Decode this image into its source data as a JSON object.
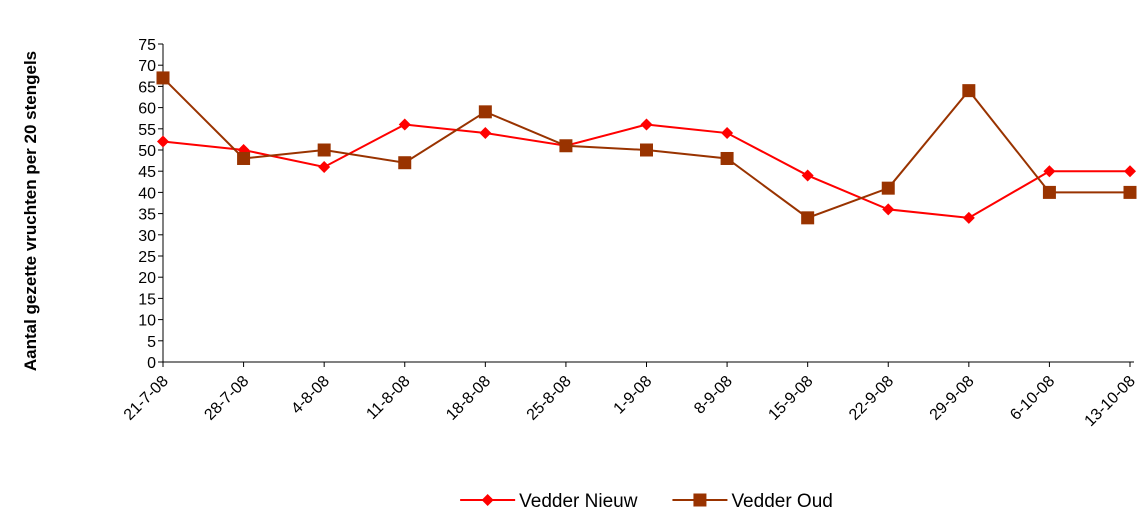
{
  "chart_data": {
    "type": "line",
    "y_label": "Aantal gezette vruchten per 20 stengels",
    "categories": [
      "21-7-08",
      "28-7-08",
      "4-8-08",
      "11-8-08",
      "18-8-08",
      "25-8-08",
      "1-9-08",
      "8-9-08",
      "15-9-08",
      "22-9-08",
      "29-9-08",
      "6-10-08",
      "13-10-08"
    ],
    "series": [
      {
        "name": "Vedder Nieuw",
        "color": "#ff0000",
        "marker": "diamond",
        "values": [
          52,
          50,
          46,
          56,
          54,
          51,
          56,
          54,
          44,
          36,
          34,
          45,
          45
        ]
      },
      {
        "name": "Vedder Oud",
        "color": "#993300",
        "marker": "square",
        "values": [
          67,
          48,
          50,
          47,
          59,
          51,
          50,
          48,
          34,
          41,
          64,
          40,
          40
        ]
      }
    ],
    "ylim": [
      0,
      75
    ],
    "yticks": [
      0,
      5,
      10,
      15,
      20,
      25,
      30,
      35,
      40,
      45,
      50,
      55,
      60,
      65,
      70,
      75
    ],
    "grid": false,
    "legend": "bottom"
  }
}
